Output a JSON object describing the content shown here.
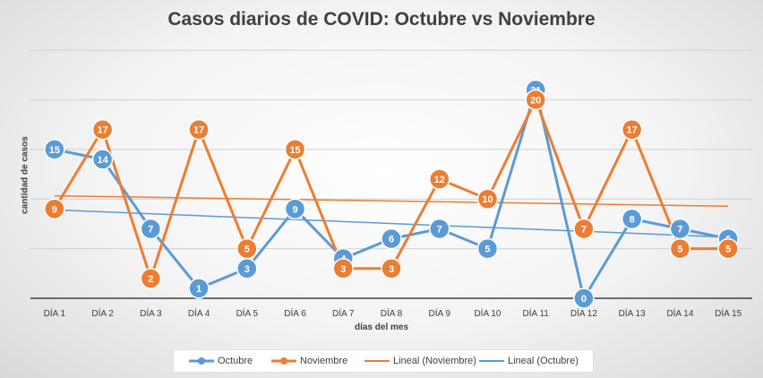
{
  "chart_data": {
    "type": "line",
    "title": "Casos diarios de COVID: Octubre vs Noviembre",
    "xlabel": "días del mes",
    "ylabel": "cantidad de casos",
    "categories": [
      "DÍA 1",
      "DÍA 2",
      "DÍA 3",
      "DÍA 4",
      "DÍA 5",
      "DÍA 6",
      "DÍA 7",
      "DÍA 8",
      "DÍA 9",
      "DÍA 10",
      "DÍA 11",
      "DÍA 12",
      "DÍA 13",
      "DÍA 14",
      "DÍA 15"
    ],
    "ylim": [
      0,
      25
    ],
    "grid": true,
    "data_labels": true,
    "legend_position": "bottom",
    "series": [
      {
        "name": "Octubre",
        "color": "#5B9BD5",
        "values": [
          15,
          14,
          7,
          1,
          3,
          9,
          4,
          6,
          7,
          5,
          21,
          0,
          8,
          7,
          6
        ]
      },
      {
        "name": "Noviembre",
        "color": "#ED7D31",
        "values": [
          9,
          17,
          2,
          17,
          5,
          15,
          3,
          3,
          12,
          10,
          20,
          7,
          17,
          5,
          5
        ]
      }
    ],
    "trendlines": [
      {
        "name": "Lineal (Noviembre)",
        "color": "#ED7D31",
        "type": "linear",
        "of_series": "Noviembre"
      },
      {
        "name": "Lineal (Octubre)",
        "color": "#5B9BD5",
        "type": "linear",
        "of_series": "Octubre"
      }
    ]
  }
}
